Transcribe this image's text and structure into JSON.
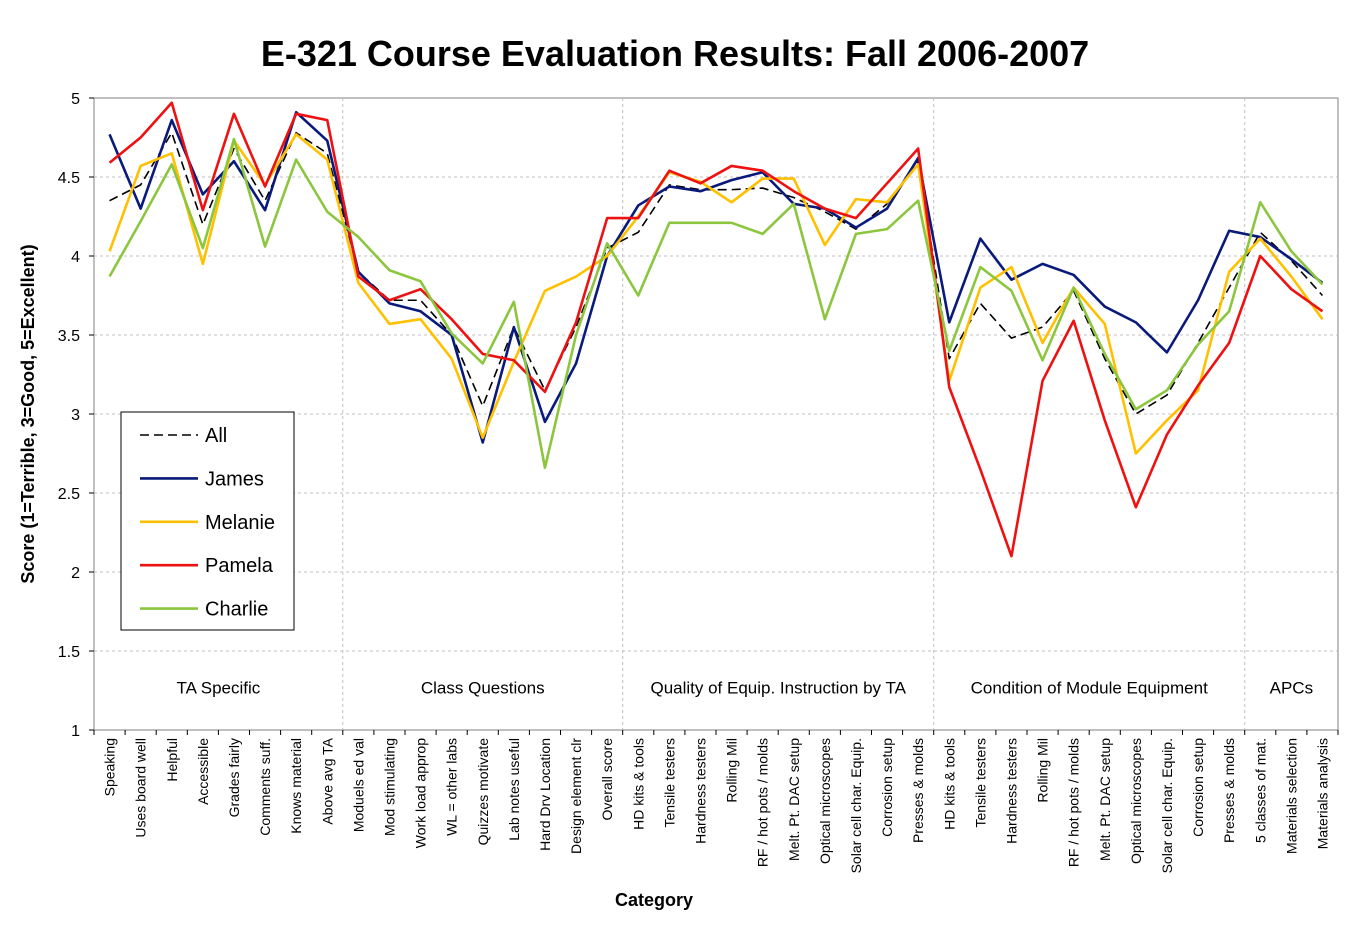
{
  "chart_data": {
    "type": "line",
    "title": "E-321 Course Evaluation Results: Fall 2006-2007",
    "xlabel": "Category",
    "ylabel": "Score (1=Terrible, 3=Good, 5=Excellent)",
    "ylim": [
      1,
      5
    ],
    "yticks": [
      "1",
      "1.5",
      "2",
      "2.5",
      "3",
      "3.5",
      "4",
      "4.5",
      "5"
    ],
    "grid": true,
    "legend_position": "left",
    "categories": [
      "Speaking",
      "Uses board well",
      "Helpful",
      "Accessible",
      "Grades fairly",
      "Comments suff.",
      "Knows material",
      "Above avg TA",
      "Moduels ed val",
      "Mod stimulating",
      "Work load approp",
      "WL  = other labs",
      "Quizzes motivate",
      "Lab notes useful",
      "Hard Drv Location",
      "Design element clr",
      "Overall score",
      "HD kits & tools",
      "Tensile testers",
      "Hardness testers",
      "Rolling Mil",
      "RF / hot pots / molds",
      "Melt. Pt. DAC setup",
      "Optical microscopes",
      "Solar cell char. Equip.",
      "Corrosion setup",
      "Presses & molds",
      "HD kits & tools",
      "Tensile testers",
      "Hardness testers",
      "Rolling Mil",
      "RF / hot pots / molds",
      "Melt. Pt. DAC setup",
      "Optical microscopes",
      "Solar cell char. Equip.",
      "Corrosion setup",
      "Presses & molds",
      "5 classes of mat.",
      "Materials selection",
      "Materials analysis"
    ],
    "sections": [
      {
        "label": "TA Specific",
        "start": 0,
        "end": 7
      },
      {
        "label": "Class Questions",
        "start": 8,
        "end": 16
      },
      {
        "label": "Quality of Equip. Instruction by TA",
        "start": 17,
        "end": 26
      },
      {
        "label": "Condition of Module Equipment",
        "start": 27,
        "end": 36
      },
      {
        "label": "APCs",
        "start": 37,
        "end": 39
      }
    ],
    "series": [
      {
        "name": "All",
        "color": "#000000",
        "dashed": true,
        "values": [
          4.35,
          4.45,
          4.78,
          4.2,
          4.68,
          4.35,
          4.78,
          4.65,
          3.9,
          3.72,
          3.72,
          3.5,
          3.05,
          3.55,
          3.15,
          3.55,
          4.05,
          4.15,
          4.45,
          4.42,
          4.42,
          4.43,
          4.37,
          4.28,
          4.17,
          4.33,
          4.6,
          3.35,
          3.7,
          3.48,
          3.55,
          3.78,
          3.35,
          3.0,
          3.12,
          3.45,
          3.8,
          4.15,
          3.97,
          3.75
        ]
      },
      {
        "name": "James",
        "color": "#0a1a7a",
        "dashed": false,
        "values": [
          4.77,
          4.3,
          4.86,
          4.39,
          4.6,
          4.29,
          4.91,
          4.73,
          3.9,
          3.7,
          3.65,
          3.5,
          2.82,
          3.55,
          2.95,
          3.32,
          4.0,
          4.32,
          4.44,
          4.41,
          4.48,
          4.53,
          4.33,
          4.3,
          4.18,
          4.3,
          4.62,
          3.58,
          4.11,
          3.85,
          3.95,
          3.88,
          3.68,
          3.58,
          3.39,
          3.72,
          4.16,
          4.12,
          3.98,
          3.83
        ]
      },
      {
        "name": "Melanie",
        "color": "#ffc000",
        "dashed": false,
        "values": [
          4.03,
          4.57,
          4.65,
          3.95,
          4.73,
          4.45,
          4.77,
          4.61,
          3.83,
          3.57,
          3.6,
          3.35,
          2.85,
          3.33,
          3.78,
          3.87,
          4.0,
          4.25,
          4.53,
          4.47,
          4.34,
          4.49,
          4.49,
          4.07,
          4.36,
          4.34,
          4.58,
          3.21,
          3.8,
          3.93,
          3.45,
          3.8,
          3.57,
          2.75,
          2.96,
          3.15,
          3.9,
          4.11,
          3.87,
          3.6
        ]
      },
      {
        "name": "Pamela",
        "color": "#ee1111",
        "dashed": false,
        "values": [
          4.59,
          4.75,
          4.97,
          4.29,
          4.9,
          4.44,
          4.9,
          4.86,
          3.87,
          3.72,
          3.79,
          3.6,
          3.38,
          3.34,
          3.14,
          3.58,
          4.24,
          4.24,
          4.54,
          4.46,
          4.57,
          4.54,
          4.41,
          4.3,
          4.24,
          4.46,
          4.68,
          3.17,
          2.65,
          2.1,
          3.21,
          3.59,
          2.96,
          2.41,
          2.87,
          3.18,
          3.45,
          4.0,
          3.79,
          3.65
        ]
      },
      {
        "name": "Charlie",
        "color": "#8cc63f",
        "dashed": false,
        "values": [
          3.87,
          4.22,
          4.58,
          4.05,
          4.74,
          4.06,
          4.61,
          4.28,
          4.12,
          3.91,
          3.84,
          3.51,
          3.32,
          3.71,
          2.66,
          3.5,
          4.08,
          3.75,
          4.21,
          4.21,
          4.21,
          4.14,
          4.33,
          3.6,
          4.14,
          4.17,
          4.35,
          3.4,
          3.93,
          3.78,
          3.34,
          3.8,
          3.38,
          3.03,
          3.15,
          3.44,
          3.65,
          4.34,
          4.03,
          3.82
        ]
      }
    ]
  }
}
